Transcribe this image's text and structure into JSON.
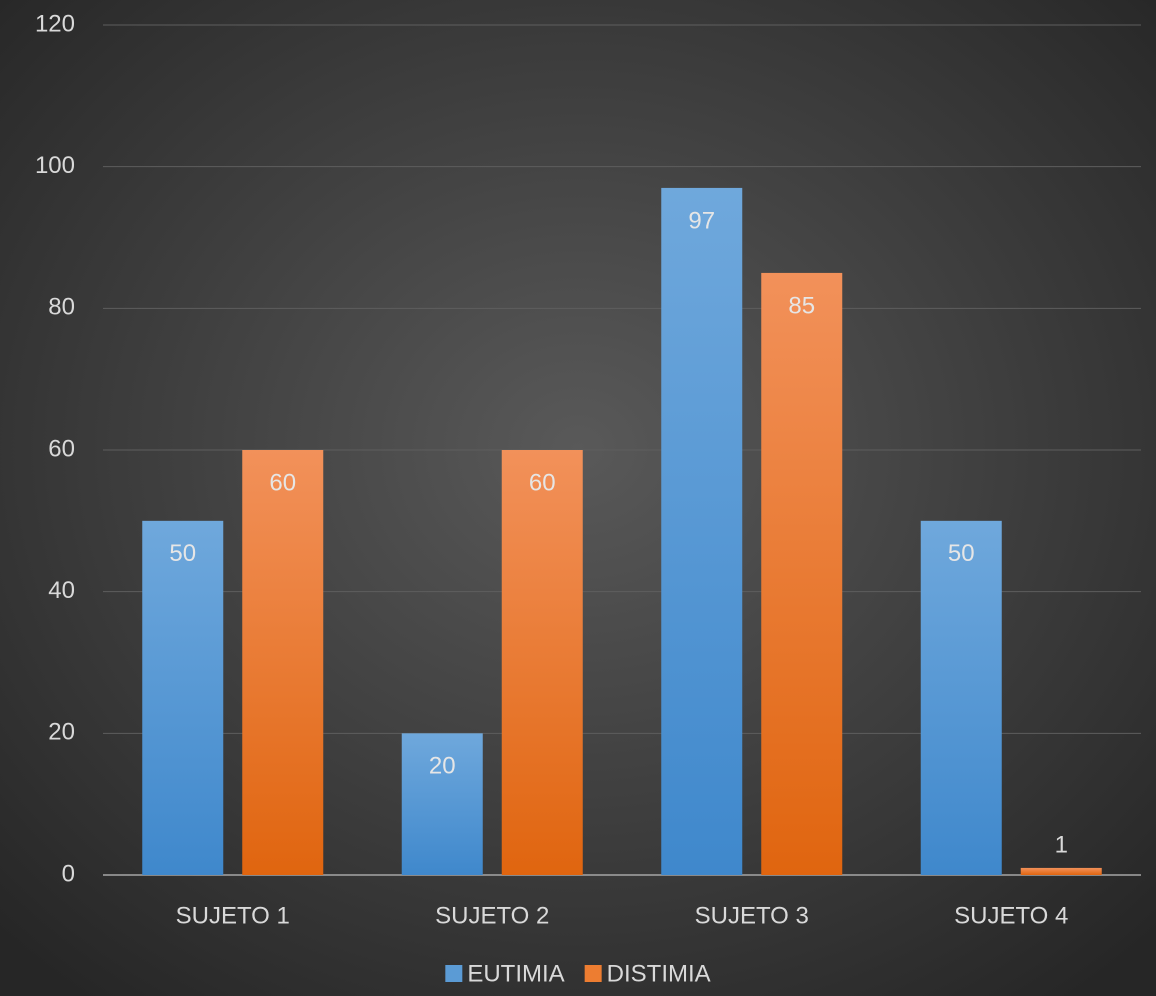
{
  "chart_data": {
    "type": "bar",
    "categories": [
      "SUJETO 1",
      "SUJETO 2",
      "SUJETO 3",
      "SUJETO 4"
    ],
    "series": [
      {
        "name": "EUTIMIA",
        "color": "#5b9bd5",
        "values": [
          50,
          20,
          97,
          50
        ]
      },
      {
        "name": "DISTIMIA",
        "color": "#ed7d31",
        "values": [
          60,
          60,
          85,
          1
        ]
      }
    ],
    "ylim": [
      0,
      120
    ],
    "yticks": [
      0,
      20,
      40,
      60,
      80,
      100,
      120
    ],
    "grid": true,
    "legend": "bottom"
  }
}
